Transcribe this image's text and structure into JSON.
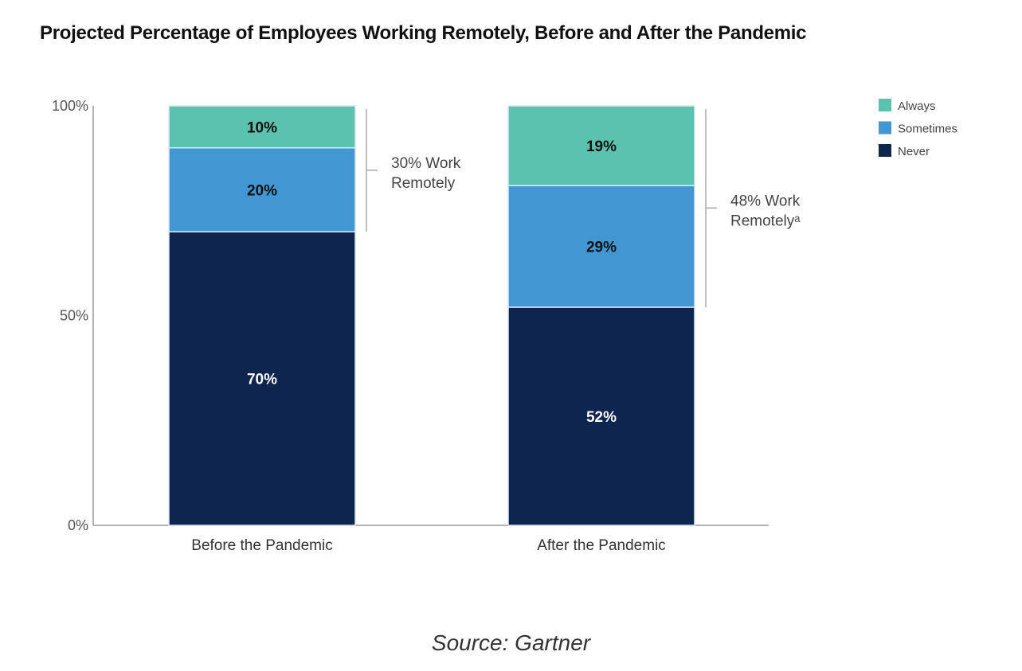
{
  "chart_data": {
    "type": "bar",
    "stacked": true,
    "title": "Projected Percentage of Employees Working Remotely, Before and After the Pandemic",
    "categories": [
      "Before the Pandemic",
      "After the Pandemic"
    ],
    "series": [
      {
        "name": "Never",
        "values": [
          70,
          52
        ],
        "color": "#0e2550",
        "labels": [
          "70%",
          "52%"
        ],
        "label_color": "#ffffff"
      },
      {
        "name": "Sometimes",
        "values": [
          20,
          29
        ],
        "color": "#4296d2",
        "labels": [
          "20%",
          "29%"
        ],
        "label_color": "#111111"
      },
      {
        "name": "Always",
        "values": [
          10,
          19
        ],
        "color": "#5bc2ae",
        "labels": [
          "10%",
          "19%"
        ],
        "label_color": "#111111"
      }
    ],
    "ylim": [
      0,
      100
    ],
    "yticks": [
      "0%",
      "50%",
      "100%"
    ],
    "legend_position": "top-right",
    "legend_order": [
      "Always",
      "Sometimes",
      "Never"
    ],
    "annotations": [
      {
        "lines": [
          "30% Work",
          "Remotely"
        ]
      },
      {
        "lines": [
          "48% Work",
          "Remotelyᵃ"
        ]
      }
    ],
    "grid": false
  },
  "source": "Source: Gartner"
}
